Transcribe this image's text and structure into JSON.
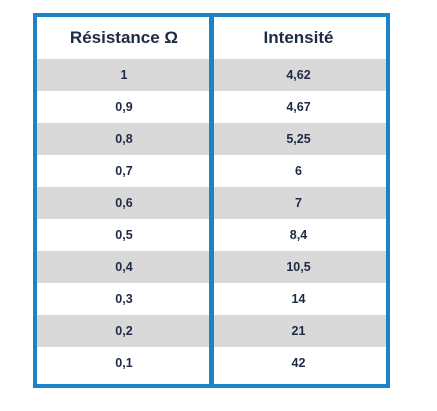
{
  "table": {
    "headers": [
      "Résistance Ω",
      "Intensité"
    ],
    "rows": [
      [
        "1",
        "4,62"
      ],
      [
        "0,9",
        "4,67"
      ],
      [
        "0,8",
        "5,25"
      ],
      [
        "0,7",
        "6"
      ],
      [
        "0,6",
        "7"
      ],
      [
        "0,5",
        "8,4"
      ],
      [
        "0,4",
        "10,5"
      ],
      [
        "0,3",
        "14"
      ],
      [
        "0,2",
        "21"
      ],
      [
        "0,1",
        "42"
      ]
    ]
  },
  "colors": {
    "border": "#1c84c6",
    "shaded_row": "#d9d9d9",
    "text": "#1f2a44"
  }
}
